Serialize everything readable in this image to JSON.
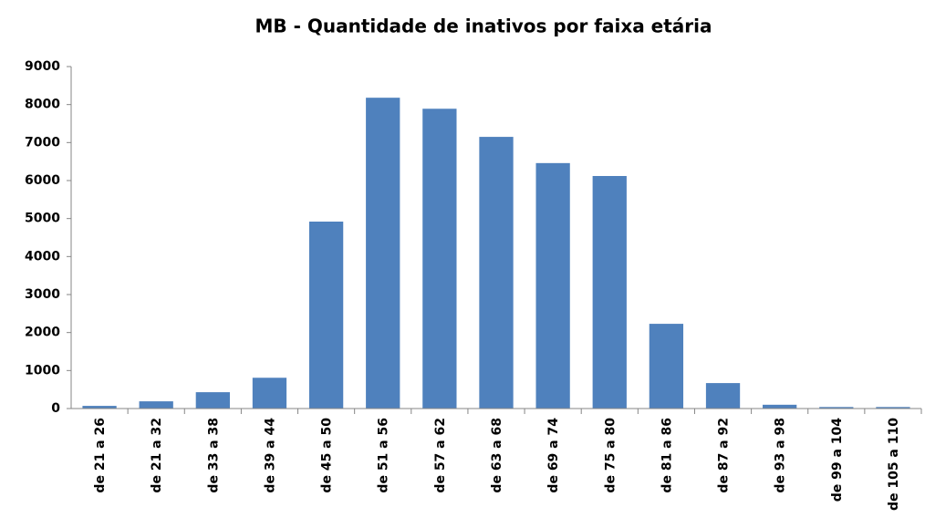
{
  "chart_data": {
    "type": "bar",
    "title": "MB - Quantidade de inativos por faixa etária",
    "categories": [
      "de 21 a 26",
      "de 21 a 32",
      "de 33 a 38",
      "de 39 a 44",
      "de 45 a 50",
      "de 51 a 56",
      "de 57 a 62",
      "de 63 a 68",
      "de 69 a 74",
      "de 75 a 80",
      "de 81 a 86",
      "de 87 a 92",
      "de 93 a 98",
      "de 99 a 104",
      "de 105 a 110"
    ],
    "values": [
      70,
      190,
      430,
      810,
      4920,
      8180,
      7890,
      7150,
      6460,
      6120,
      2230,
      670,
      100,
      40,
      40
    ],
    "color": "#4f81bd",
    "ylim": [
      0,
      9000
    ],
    "yticks": [
      0,
      1000,
      2000,
      3000,
      4000,
      5000,
      6000,
      7000,
      8000,
      9000
    ],
    "grid": false
  }
}
